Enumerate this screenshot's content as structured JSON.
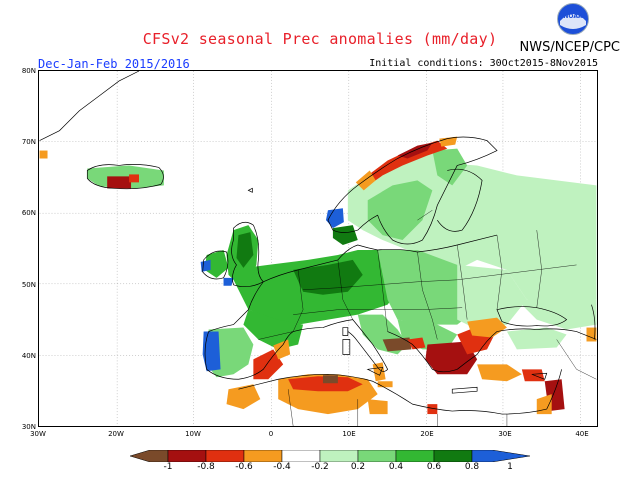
{
  "title": "CFSv2 seasonal Prec anomalies (mm/day)",
  "season_label": "Dec-Jan-Feb 2015/2016",
  "initial_conditions": "Initial conditions: 30Oct2015-8Nov2015",
  "org": "NWS/NCEP/CPC",
  "logo_text": "NOAA",
  "lat_labels": [
    "80N",
    "70N",
    "60N",
    "50N",
    "40N",
    "30N"
  ],
  "lon_labels": [
    "30W",
    "20W",
    "10W",
    "0",
    "10E",
    "20E",
    "30E",
    "40E"
  ],
  "legend": {
    "labels": [
      "-1",
      "-0.8",
      "-0.6",
      "-0.4",
      "-0.2",
      "0.2",
      "0.4",
      "0.6",
      "0.8",
      "1"
    ],
    "colors": [
      "#7a4a2a",
      "#a51010",
      "#e03010",
      "#f59b20",
      "#ffffff",
      "#bff2bf",
      "#79d879",
      "#33b833",
      "#117a11",
      "#1d5fd8"
    ]
  },
  "colors": {
    "dark_green": "#117a11",
    "green": "#33b833",
    "light_green": "#79d879",
    "pale_green": "#bff2bf",
    "orange": "#f59b20",
    "red": "#e03010",
    "dark_red": "#a51010",
    "brown": "#7a4a2a",
    "blue": "#1d5fd8"
  }
}
